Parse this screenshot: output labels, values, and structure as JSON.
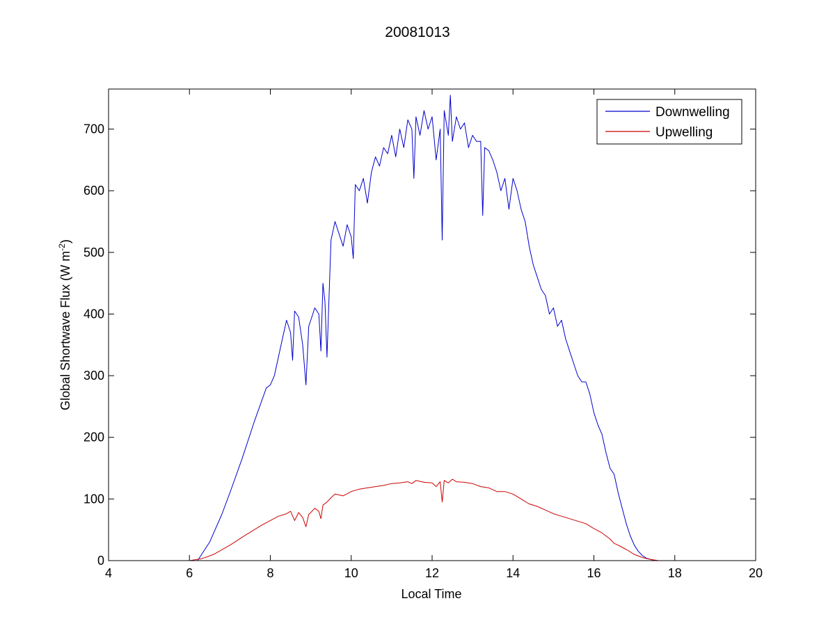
{
  "chart_data": {
    "type": "line",
    "title": "20081013",
    "xlabel": "Local Time",
    "ylabel_main": "Global Shortwave Flux (W m",
    "ylabel_sup": "-2",
    "ylabel_tail": ")",
    "xlim": [
      4,
      20
    ],
    "ylim": [
      0,
      765
    ],
    "xticks": [
      4,
      6,
      8,
      10,
      12,
      14,
      16,
      18,
      20
    ],
    "yticks": [
      0,
      100,
      200,
      300,
      400,
      500,
      600,
      700
    ],
    "grid": false,
    "legend_position": "top-right",
    "series": [
      {
        "name": "Downwelling",
        "color": "#0000cc",
        "x": [
          4.0,
          6.0,
          6.2,
          6.5,
          6.8,
          7.0,
          7.3,
          7.6,
          7.9,
          8.0,
          8.1,
          8.2,
          8.3,
          8.4,
          8.5,
          8.55,
          8.6,
          8.7,
          8.8,
          8.88,
          8.95,
          9.0,
          9.1,
          9.2,
          9.25,
          9.3,
          9.35,
          9.4,
          9.5,
          9.6,
          9.7,
          9.8,
          9.9,
          10.0,
          10.05,
          10.1,
          10.2,
          10.3,
          10.4,
          10.5,
          10.6,
          10.7,
          10.8,
          10.9,
          11.0,
          11.1,
          11.2,
          11.3,
          11.4,
          11.5,
          11.55,
          11.6,
          11.7,
          11.8,
          11.9,
          12.0,
          12.1,
          12.2,
          12.25,
          12.3,
          12.4,
          12.45,
          12.5,
          12.6,
          12.7,
          12.8,
          12.9,
          13.0,
          13.1,
          13.2,
          13.25,
          13.3,
          13.4,
          13.5,
          13.6,
          13.7,
          13.8,
          13.9,
          14.0,
          14.1,
          14.2,
          14.3,
          14.4,
          14.5,
          14.6,
          14.7,
          14.8,
          14.9,
          15.0,
          15.1,
          15.2,
          15.3,
          15.4,
          15.5,
          15.6,
          15.7,
          15.8,
          15.9,
          16.0,
          16.1,
          16.2,
          16.3,
          16.4,
          16.5,
          16.6,
          16.7,
          16.8,
          16.9,
          17.0,
          17.1,
          17.2,
          17.3,
          17.4,
          17.5,
          17.6,
          17.7,
          17.8,
          20.0
        ],
        "y": [
          0,
          0,
          0,
          30,
          75,
          110,
          165,
          225,
          280,
          285,
          300,
          330,
          360,
          390,
          370,
          325,
          405,
          395,
          350,
          285,
          380,
          390,
          410,
          400,
          340,
          450,
          420,
          330,
          520,
          550,
          530,
          510,
          545,
          525,
          490,
          610,
          600,
          620,
          580,
          630,
          655,
          640,
          670,
          660,
          690,
          655,
          700,
          670,
          715,
          700,
          620,
          720,
          690,
          730,
          700,
          720,
          650,
          700,
          520,
          730,
          690,
          755,
          680,
          720,
          700,
          710,
          670,
          690,
          680,
          680,
          560,
          670,
          665,
          650,
          630,
          600,
          620,
          570,
          620,
          600,
          570,
          550,
          510,
          480,
          460,
          440,
          430,
          400,
          410,
          380,
          390,
          360,
          340,
          320,
          300,
          290,
          290,
          270,
          240,
          220,
          205,
          175,
          150,
          140,
          110,
          85,
          60,
          40,
          25,
          15,
          8,
          4,
          2,
          0,
          0,
          0,
          0,
          0
        ],
        "note_unused": null
      },
      {
        "name": "Upwelling",
        "color": "#cc0000",
        "x": [
          4.0,
          6.0,
          6.3,
          6.6,
          7.0,
          7.4,
          7.8,
          8.2,
          8.4,
          8.5,
          8.6,
          8.7,
          8.8,
          8.88,
          8.95,
          9.0,
          9.1,
          9.2,
          9.25,
          9.3,
          9.4,
          9.5,
          9.6,
          9.8,
          10.0,
          10.2,
          10.4,
          10.6,
          10.8,
          11.0,
          11.2,
          11.4,
          11.5,
          11.6,
          11.8,
          12.0,
          12.1,
          12.2,
          12.25,
          12.3,
          12.4,
          12.5,
          12.6,
          12.8,
          13.0,
          13.2,
          13.4,
          13.6,
          13.8,
          14.0,
          14.2,
          14.4,
          14.6,
          14.8,
          15.0,
          15.2,
          15.4,
          15.6,
          15.8,
          16.0,
          16.2,
          16.4,
          16.5,
          16.6,
          16.8,
          17.0,
          17.2,
          17.4,
          17.6,
          17.8,
          20.0
        ],
        "y": [
          0,
          0,
          3,
          10,
          25,
          42,
          58,
          72,
          76,
          80,
          65,
          78,
          70,
          55,
          75,
          78,
          85,
          80,
          68,
          90,
          95,
          102,
          108,
          105,
          112,
          116,
          118,
          120,
          122,
          125,
          126,
          128,
          125,
          130,
          127,
          126,
          120,
          128,
          95,
          130,
          126,
          132,
          128,
          127,
          125,
          120,
          118,
          112,
          112,
          108,
          100,
          92,
          88,
          82,
          76,
          72,
          68,
          64,
          60,
          52,
          45,
          35,
          28,
          25,
          18,
          10,
          5,
          2,
          0,
          0,
          0
        ]
      }
    ]
  }
}
